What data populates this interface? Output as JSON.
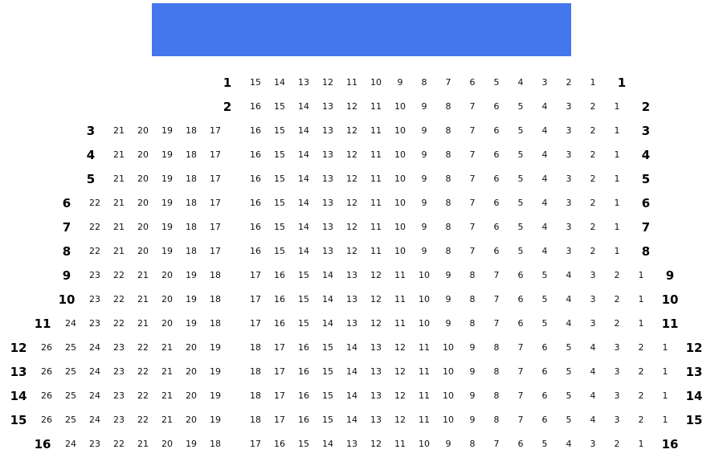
{
  "stage": {
    "color": "#4477ee"
  },
  "rows": [
    {
      "label": "1",
      "left": [],
      "right": [
        15,
        14,
        13,
        12,
        11,
        10,
        9,
        8,
        7,
        6,
        5,
        4,
        3,
        2,
        1
      ]
    },
    {
      "label": "2",
      "left": [],
      "right": [
        16,
        15,
        14,
        13,
        12,
        11,
        10,
        9,
        8,
        7,
        6,
        5,
        4,
        3,
        2,
        1
      ]
    },
    {
      "label": "3",
      "left": [
        21,
        20,
        19,
        18,
        17
      ],
      "right": [
        16,
        15,
        14,
        13,
        12,
        11,
        10,
        9,
        8,
        7,
        6,
        5,
        4,
        3,
        2,
        1
      ]
    },
    {
      "label": "4",
      "left": [
        21,
        20,
        19,
        18,
        17
      ],
      "right": [
        16,
        15,
        14,
        13,
        12,
        11,
        10,
        9,
        8,
        7,
        6,
        5,
        4,
        3,
        2,
        1
      ]
    },
    {
      "label": "5",
      "left": [
        21,
        20,
        19,
        18,
        17
      ],
      "right": [
        16,
        15,
        14,
        13,
        12,
        11,
        10,
        9,
        8,
        7,
        6,
        5,
        4,
        3,
        2,
        1
      ]
    },
    {
      "label": "6",
      "left": [
        22,
        21,
        20,
        19,
        18,
        17
      ],
      "right": [
        16,
        15,
        14,
        13,
        12,
        11,
        10,
        9,
        8,
        7,
        6,
        5,
        4,
        3,
        2,
        1
      ]
    },
    {
      "label": "7",
      "left": [
        22,
        21,
        20,
        19,
        18,
        17
      ],
      "right": [
        16,
        15,
        14,
        13,
        12,
        11,
        10,
        9,
        8,
        7,
        6,
        5,
        4,
        3,
        2,
        1
      ]
    },
    {
      "label": "8",
      "left": [
        22,
        21,
        20,
        19,
        18,
        17
      ],
      "right": [
        16,
        15,
        14,
        13,
        12,
        11,
        10,
        9,
        8,
        7,
        6,
        5,
        4,
        3,
        2,
        1
      ]
    },
    {
      "label": "9",
      "left": [
        23,
        22,
        21,
        20,
        19,
        18
      ],
      "right": [
        17,
        16,
        15,
        14,
        13,
        12,
        11,
        10,
        9,
        8,
        7,
        6,
        5,
        4,
        3,
        2,
        1
      ]
    },
    {
      "label": "10",
      "left": [
        23,
        22,
        21,
        20,
        19,
        18
      ],
      "right": [
        17,
        16,
        15,
        14,
        13,
        12,
        11,
        10,
        9,
        8,
        7,
        6,
        5,
        4,
        3,
        2,
        1
      ]
    },
    {
      "label": "11",
      "left": [
        24,
        23,
        22,
        21,
        20,
        19,
        18
      ],
      "right": [
        17,
        16,
        15,
        14,
        13,
        12,
        11,
        10,
        9,
        8,
        7,
        6,
        5,
        4,
        3,
        2,
        1
      ]
    },
    {
      "label": "12",
      "left": [
        26,
        25,
        24,
        23,
        22,
        21,
        20,
        19
      ],
      "right": [
        18,
        17,
        16,
        15,
        14,
        13,
        12,
        11,
        10,
        9,
        8,
        7,
        6,
        5,
        4,
        3,
        2,
        1
      ]
    },
    {
      "label": "13",
      "left": [
        26,
        25,
        24,
        23,
        22,
        21,
        20,
        19
      ],
      "right": [
        18,
        17,
        16,
        15,
        14,
        13,
        12,
        11,
        10,
        9,
        8,
        7,
        6,
        5,
        4,
        3,
        2,
        1
      ]
    },
    {
      "label": "14",
      "left": [
        26,
        25,
        24,
        23,
        22,
        21,
        20,
        19
      ],
      "right": [
        18,
        17,
        16,
        15,
        14,
        13,
        12,
        11,
        10,
        9,
        8,
        7,
        6,
        5,
        4,
        3,
        2,
        1
      ]
    },
    {
      "label": "15",
      "left": [
        26,
        25,
        24,
        23,
        22,
        21,
        20,
        19
      ],
      "right": [
        18,
        17,
        16,
        15,
        14,
        13,
        12,
        11,
        10,
        9,
        8,
        7,
        6,
        5,
        4,
        3,
        2,
        1
      ]
    },
    {
      "label": "16",
      "left": [
        24,
        23,
        22,
        21,
        20,
        19,
        18
      ],
      "right": [
        17,
        16,
        15,
        14,
        13,
        12,
        11,
        10,
        9,
        8,
        7,
        6,
        5,
        4,
        3,
        2,
        1
      ]
    }
  ]
}
